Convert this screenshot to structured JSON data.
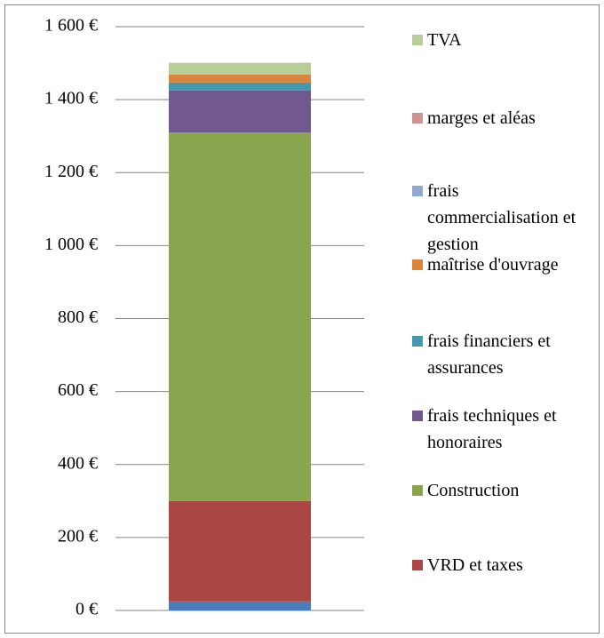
{
  "chart_data": {
    "type": "stacked_bar",
    "categories": [
      null
    ],
    "series": [
      {
        "name": null,
        "color": "#4a7ebb",
        "values": [
          25
        ]
      },
      {
        "name": "VRD et taxes",
        "color": "#aa4643",
        "values": [
          275
        ]
      },
      {
        "name": "Construction",
        "color": "#89a54e",
        "values": [
          1010
        ]
      },
      {
        "name": "frais techniques et honoraires",
        "color": "#71588f",
        "values": [
          115
        ]
      },
      {
        "name": "frais financiers et assurances",
        "color": "#4198af",
        "values": [
          22
        ]
      },
      {
        "name": "maîtrise d'ouvrage",
        "color": "#db843d",
        "values": [
          22
        ]
      },
      {
        "name": "frais commercialisation et gestion",
        "color": "#93a9cf",
        "values": [
          0
        ]
      },
      {
        "name": "marges et aléas",
        "color": "#d19392",
        "values": [
          0
        ]
      },
      {
        "name": "TVA",
        "color": "#b9cd96",
        "values": [
          32
        ]
      }
    ],
    "ylim": [
      0,
      1600
    ],
    "yticks": [
      {
        "value": 0,
        "label": "0 €"
      },
      {
        "value": 200,
        "label": "200 €"
      },
      {
        "value": 400,
        "label": "400 €"
      },
      {
        "value": 600,
        "label": "600 €"
      },
      {
        "value": 800,
        "label": "800 €"
      },
      {
        "value": 1000,
        "label": "1 000 €"
      },
      {
        "value": 1200,
        "label": "1 200 €"
      },
      {
        "value": 1400,
        "label": "1 400 €"
      },
      {
        "value": 1600,
        "label": "1 600 €"
      }
    ],
    "grid": true,
    "legend": "right"
  }
}
